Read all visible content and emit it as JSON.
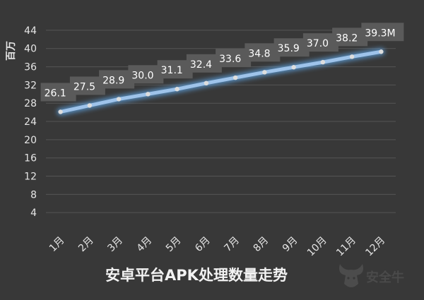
{
  "chart_data": {
    "type": "line",
    "title": "安卓平台APK处理数量走势",
    "ylabel": "百万",
    "xlabel": "",
    "categories": [
      "1月",
      "2月",
      "3月",
      "4月",
      "5月",
      "6月",
      "7月",
      "8月",
      "9月",
      "10月",
      "11月",
      "12月"
    ],
    "values": [
      26.1,
      27.5,
      28.9,
      30.0,
      31.1,
      32.4,
      33.6,
      34.8,
      35.9,
      37.0,
      38.2,
      39.3
    ],
    "data_labels": [
      "26.1",
      "27.5",
      "28.9",
      "30.0",
      "31.1",
      "32.4",
      "33.6",
      "34.8",
      "35.9",
      "37.0",
      "38.2",
      "39.3M"
    ],
    "yticks": [
      4,
      8,
      12,
      16,
      20,
      24,
      28,
      32,
      36,
      40,
      44
    ],
    "ylim": [
      0,
      46
    ],
    "grid": true,
    "legend": "none",
    "colors": {
      "background": "#383838",
      "grid": "#555555",
      "line": "#9ec3ea",
      "glow": "#5b9bd5",
      "marker": "#dddddd",
      "label_box": "#5a5a5a",
      "text": "#e6e6e6"
    }
  },
  "watermark": {
    "text": "安全牛",
    "icon": "bull-head-icon"
  }
}
